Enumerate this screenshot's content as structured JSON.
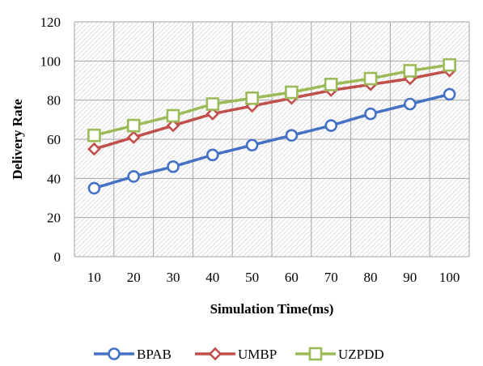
{
  "chart_data": {
    "type": "line",
    "title": "",
    "xlabel": "Simulation Time(ms)",
    "ylabel": "Delivery Rate",
    "categories": [
      "10",
      "20",
      "30",
      "40",
      "50",
      "60",
      "70",
      "80",
      "90",
      "100"
    ],
    "ylim": [
      0,
      120
    ],
    "yticks": [
      "0",
      "20",
      "40",
      "60",
      "80",
      "100",
      "120"
    ],
    "grid": true,
    "legend_position": "bottom",
    "series": [
      {
        "name": "BPAB",
        "color": "#4472C4",
        "marker": "circle",
        "values": [
          35,
          41,
          46,
          52,
          57,
          62,
          67,
          73,
          78,
          83
        ]
      },
      {
        "name": "UMBP",
        "color": "#C0504D",
        "marker": "diamond",
        "values": [
          55,
          61,
          67,
          73,
          77,
          81,
          85,
          88,
          91,
          95
        ]
      },
      {
        "name": "UZPDD",
        "color": "#9BBB59",
        "marker": "square",
        "values": [
          62,
          67,
          72,
          78,
          81,
          84,
          88,
          91,
          95,
          98
        ]
      }
    ]
  }
}
